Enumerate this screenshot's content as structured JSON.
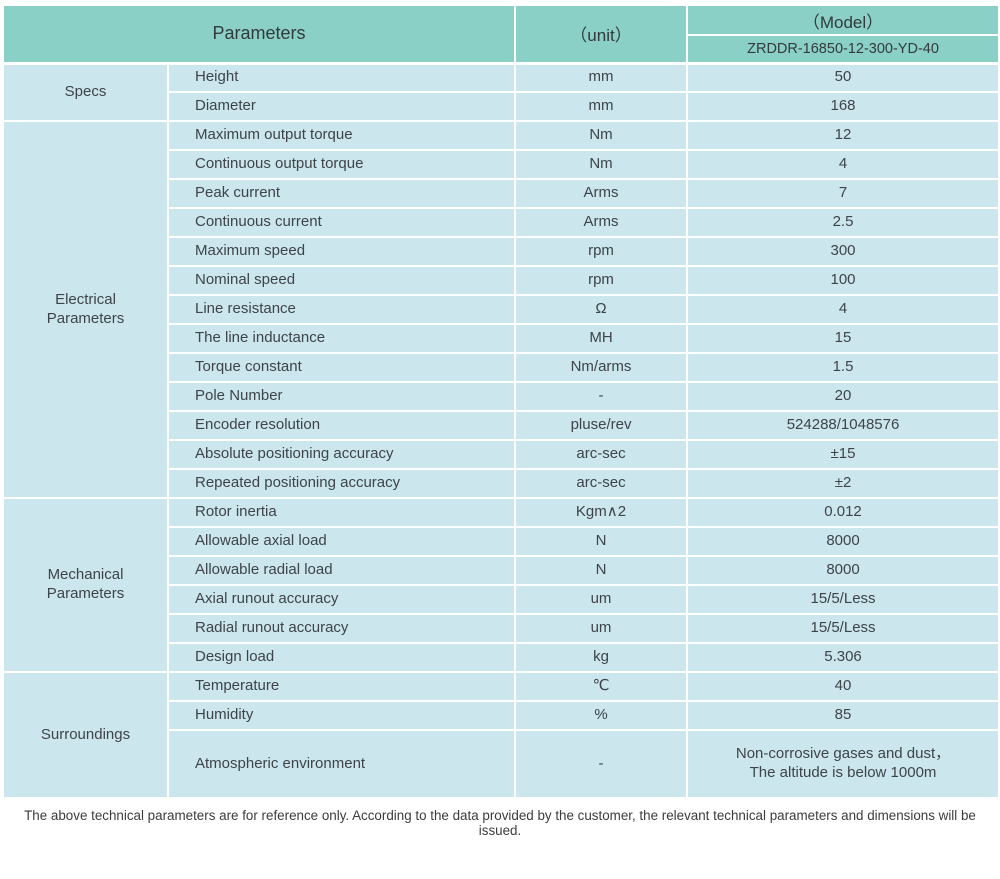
{
  "colors": {
    "header_teal": "#8ad0c6",
    "body_blue": "#cbe6ed",
    "separator_white": "#ffffff",
    "text_dark": "#3e4449"
  },
  "table": {
    "header": {
      "parameters_label": "Parameters",
      "unit_label": "（unit）",
      "model_label": "（Model）",
      "model_value": "ZRDDR-16850-12-300-YD-40"
    },
    "groups": [
      {
        "label": "Specs",
        "rows": [
          {
            "name": "Height",
            "unit": "mm",
            "value": "50"
          },
          {
            "name": "Diameter",
            "unit": "mm",
            "value": "168"
          }
        ]
      },
      {
        "label": "Electrical\nParameters",
        "rows": [
          {
            "name": "Maximum output torque",
            "unit": "Nm",
            "value": "12"
          },
          {
            "name": "Continuous output torque",
            "unit": "Nm",
            "value": "4"
          },
          {
            "name": "Peak current",
            "unit": "Arms",
            "value": "7"
          },
          {
            "name": "Continuous current",
            "unit": "Arms",
            "value": "2.5"
          },
          {
            "name": "Maximum speed",
            "unit": "rpm",
            "value": "300"
          },
          {
            "name": "Nominal speed",
            "unit": "rpm",
            "value": "100"
          },
          {
            "name": "Line resistance",
            "unit": "Ω",
            "value": "4"
          },
          {
            "name": "The line inductance",
            "unit": "MH",
            "value": "15"
          },
          {
            "name": "Torque constant",
            "unit": "Nm/arms",
            "value": "1.5"
          },
          {
            "name": "Pole Number",
            "unit": "-",
            "value": "20"
          },
          {
            "name": "Encoder resolution",
            "unit": "pluse/rev",
            "value": "524288/1048576"
          },
          {
            "name": "Absolute positioning accuracy",
            "unit": "arc-sec",
            "value": "±15"
          },
          {
            "name": "Repeated positioning accuracy",
            "unit": "arc-sec",
            "value": "±2"
          }
        ]
      },
      {
        "label": "Mechanical\nParameters",
        "rows": [
          {
            "name": "Rotor inertia",
            "unit": "Kgm∧2",
            "value": "0.012"
          },
          {
            "name": "Allowable axial load",
            "unit": "N",
            "value": "8000"
          },
          {
            "name": "Allowable radial load",
            "unit": "N",
            "value": "8000"
          },
          {
            "name": "Axial runout accuracy",
            "unit": "um",
            "value": "15/5/Less"
          },
          {
            "name": "Radial runout accuracy",
            "unit": "um",
            "value": "15/5/Less"
          },
          {
            "name": "Design load",
            "unit": "kg",
            "value": "5.306"
          }
        ]
      },
      {
        "label": "Surroundings",
        "rows": [
          {
            "name": "Temperature",
            "unit": "℃",
            "value": "40"
          },
          {
            "name": "Humidity",
            "unit": "%",
            "value": "85"
          },
          {
            "name": "Atmospheric environment",
            "unit": "-",
            "value": "Non-corrosive gases and dust，\nThe altitude is below 1000m",
            "tall": true
          }
        ]
      }
    ]
  },
  "footer": {
    "note": "The above technical parameters are for reference only. According to the data provided by the customer, the relevant technical parameters and dimensions will be issued."
  }
}
